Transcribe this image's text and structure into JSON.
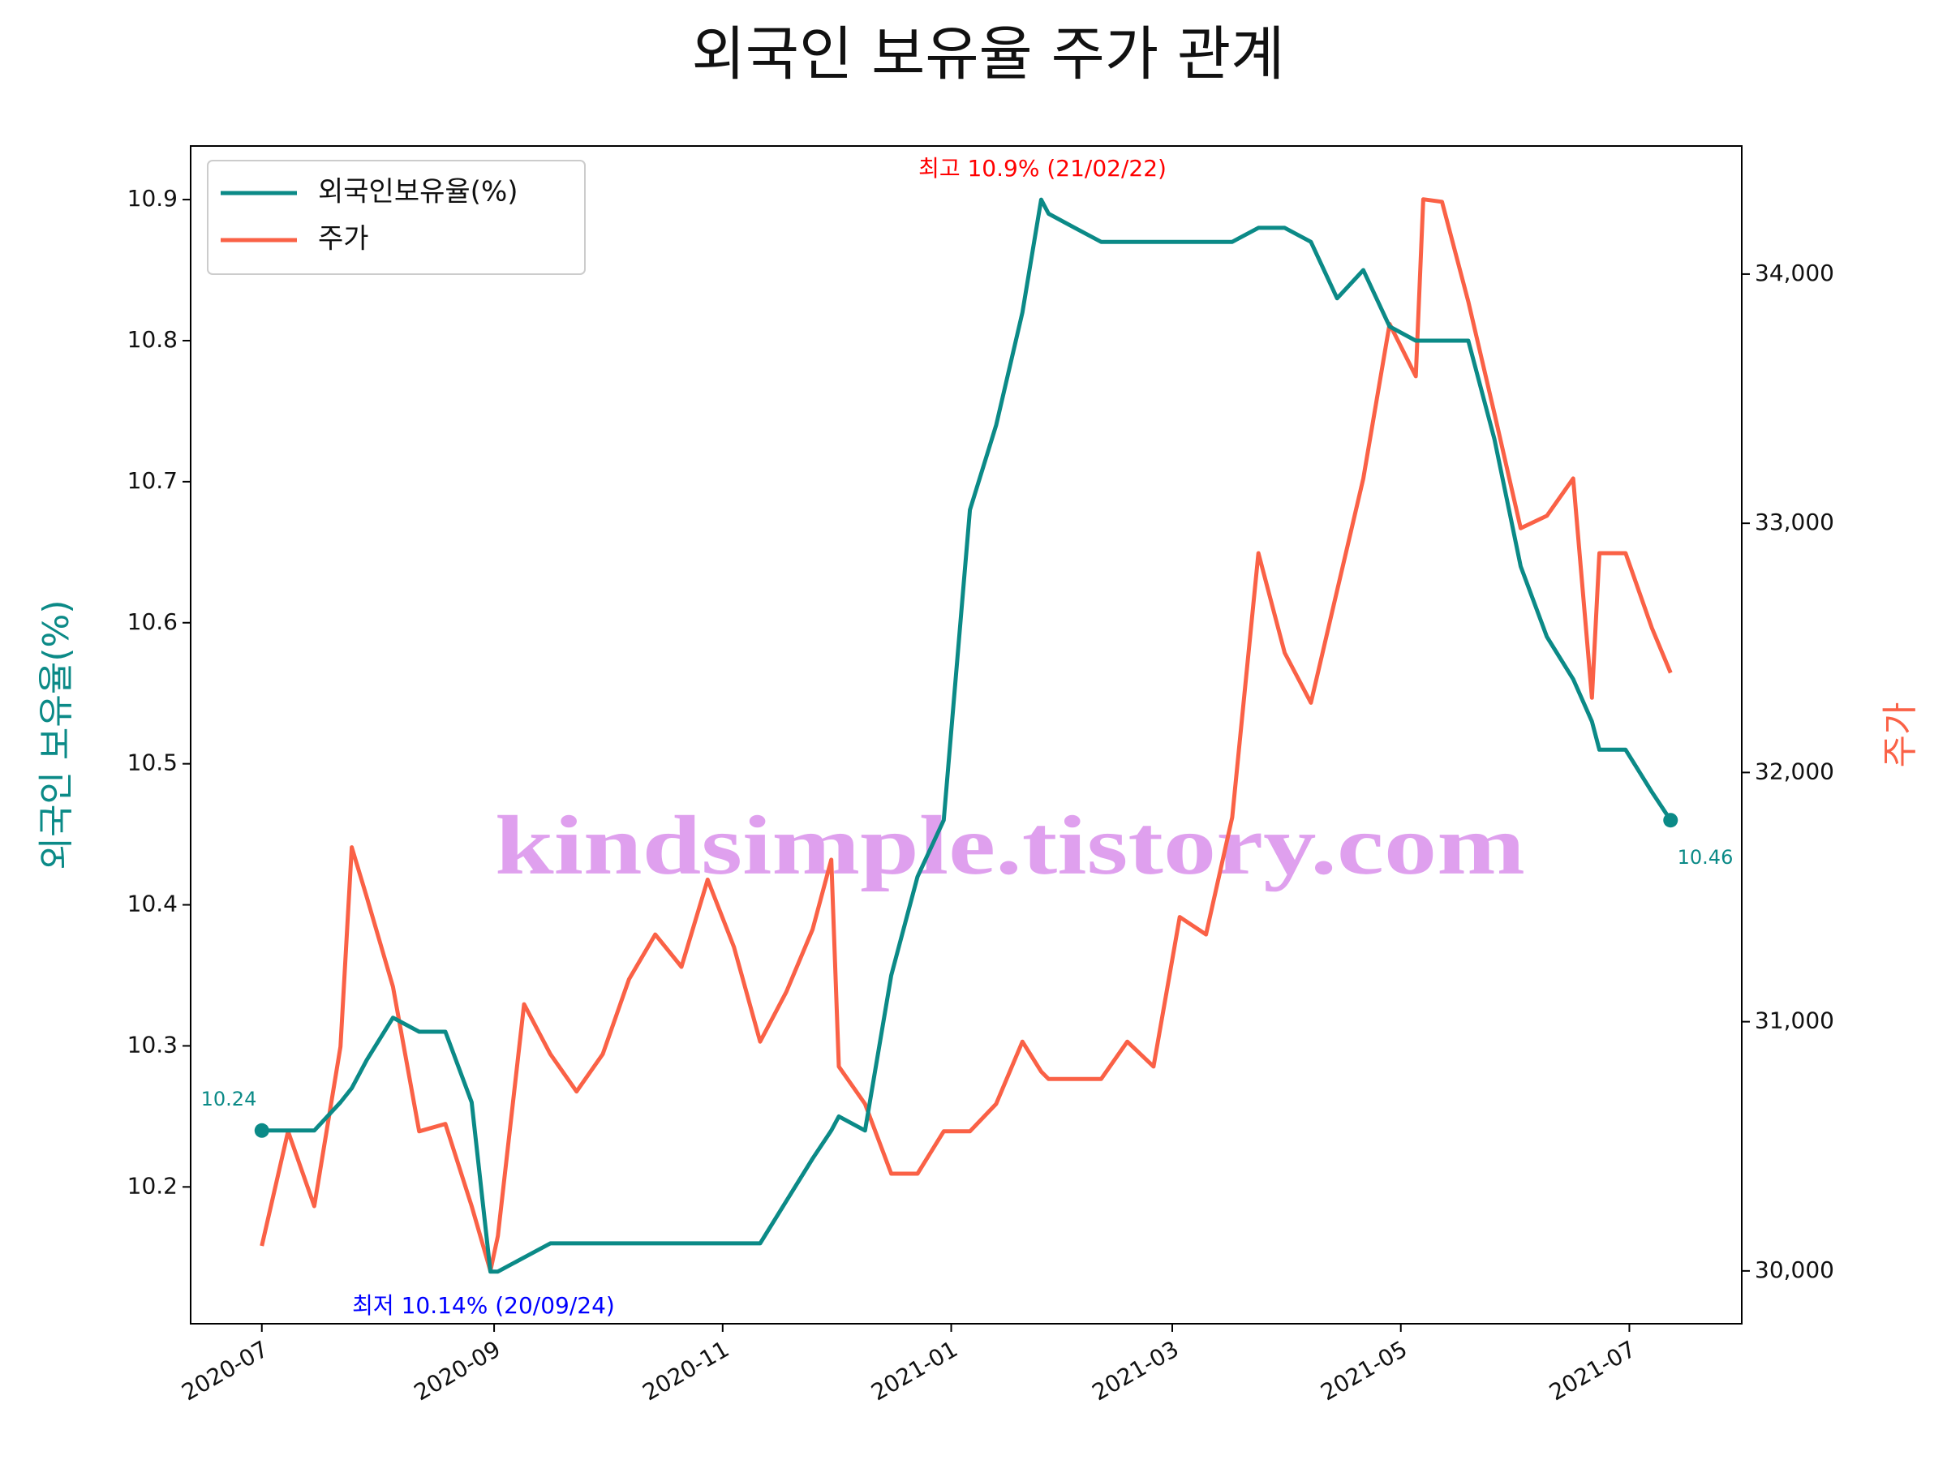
{
  "chart_data": {
    "type": "line",
    "title": "외국인 보유율 주가 관계",
    "ylabel": "외국인 보유율(%)",
    "y2label": "주가",
    "watermark": "kindsimple.tistory.com",
    "legend": "upper left",
    "annotations": {
      "max": "최고 10.9% (21/02/22)",
      "min": "최저 10.14% (20/09/24)",
      "start": "10.24",
      "end": "10.46"
    },
    "x": [
      "2020-07-01",
      "2020-07-08",
      "2020-07-15",
      "2020-07-22",
      "2020-07-25",
      "2020-07-29",
      "2020-08-05",
      "2020-08-12",
      "2020-08-19",
      "2020-08-26",
      "2020-08-31",
      "2020-09-02",
      "2020-09-09",
      "2020-09-16",
      "2020-09-23",
      "2020-09-30",
      "2020-10-07",
      "2020-10-14",
      "2020-10-21",
      "2020-10-28",
      "2020-11-04",
      "2020-11-11",
      "2020-11-18",
      "2020-11-25",
      "2020-11-30",
      "2020-12-02",
      "2020-12-09",
      "2020-12-16",
      "2020-12-23",
      "2020-12-30",
      "2021-01-06",
      "2021-01-13",
      "2021-01-20",
      "2021-01-25",
      "2021-01-27",
      "2021-02-03",
      "2021-02-10",
      "2021-02-17",
      "2021-02-24",
      "2021-03-03",
      "2021-03-10",
      "2021-03-17",
      "2021-03-24",
      "2021-03-31",
      "2021-04-07",
      "2021-04-14",
      "2021-04-21",
      "2021-04-28",
      "2021-05-05",
      "2021-05-07",
      "2021-05-12",
      "2021-05-19",
      "2021-05-26",
      "2021-06-02",
      "2021-06-09",
      "2021-06-16",
      "2021-06-21",
      "2021-06-23",
      "2021-06-30",
      "2021-07-07",
      "2021-07-12"
    ],
    "series": [
      {
        "name": "외국인보유율(%)",
        "color": "#0b8a87",
        "axis": "y",
        "values": [
          10.24,
          10.24,
          10.24,
          10.26,
          10.27,
          10.29,
          10.32,
          10.31,
          10.31,
          10.26,
          10.14,
          10.14,
          10.15,
          10.16,
          10.16,
          10.16,
          10.16,
          10.16,
          10.16,
          10.16,
          10.16,
          10.16,
          10.19,
          10.22,
          10.24,
          10.25,
          10.24,
          10.35,
          10.42,
          10.46,
          10.68,
          10.74,
          10.82,
          10.9,
          10.89,
          10.88,
          10.87,
          10.87,
          10.87,
          10.87,
          10.87,
          10.87,
          10.88,
          10.88,
          10.87,
          10.83,
          10.85,
          10.81,
          10.8,
          10.8,
          10.8,
          10.8,
          10.73,
          10.64,
          10.59,
          10.56,
          10.53,
          10.51,
          10.51,
          10.48,
          10.46
        ]
      },
      {
        "name": "주가",
        "color": "#fa6146",
        "axis": "y2",
        "values": [
          30100,
          30560,
          30260,
          30900,
          31700,
          31500,
          31140,
          30560,
          30590,
          30260,
          30000,
          30140,
          31070,
          30870,
          30720,
          30870,
          31170,
          31350,
          31220,
          31570,
          31300,
          30920,
          31120,
          31370,
          31650,
          30820,
          30670,
          30390,
          30390,
          30560,
          30560,
          30670,
          30920,
          30800,
          30770,
          30770,
          30770,
          30920,
          30820,
          31420,
          31350,
          31820,
          32880,
          32480,
          32280,
          32730,
          33180,
          33800,
          33590,
          34300,
          34290,
          33890,
          33440,
          32980,
          33030,
          33180,
          32300,
          32880,
          32880,
          32580,
          32400
        ]
      }
    ],
    "xlim": [
      "2020-06-12",
      "2021-07-31"
    ],
    "xticks": [
      {
        "value": "2020-07-01",
        "label": "2020-07"
      },
      {
        "value": "2020-09-01",
        "label": "2020-09"
      },
      {
        "value": "2020-11-01",
        "label": "2020-11"
      },
      {
        "value": "2021-01-01",
        "label": "2021-01"
      },
      {
        "value": "2021-03-01",
        "label": "2021-03"
      },
      {
        "value": "2021-05-01",
        "label": "2021-05"
      },
      {
        "value": "2021-07-01",
        "label": "2021-07"
      }
    ],
    "ylim": [
      10.103,
      10.938
    ],
    "yticks": [
      10.2,
      10.3,
      10.4,
      10.5,
      10.6,
      10.7,
      10.8,
      10.9
    ],
    "y2lim": [
      29788,
      34514
    ],
    "y2ticks": [
      {
        "value": 30000,
        "label": "30,000"
      },
      {
        "value": 31000,
        "label": "31,000"
      },
      {
        "value": 32000,
        "label": "32,000"
      },
      {
        "value": 33000,
        "label": "33,000"
      },
      {
        "value": 34000,
        "label": "34,000"
      }
    ]
  }
}
